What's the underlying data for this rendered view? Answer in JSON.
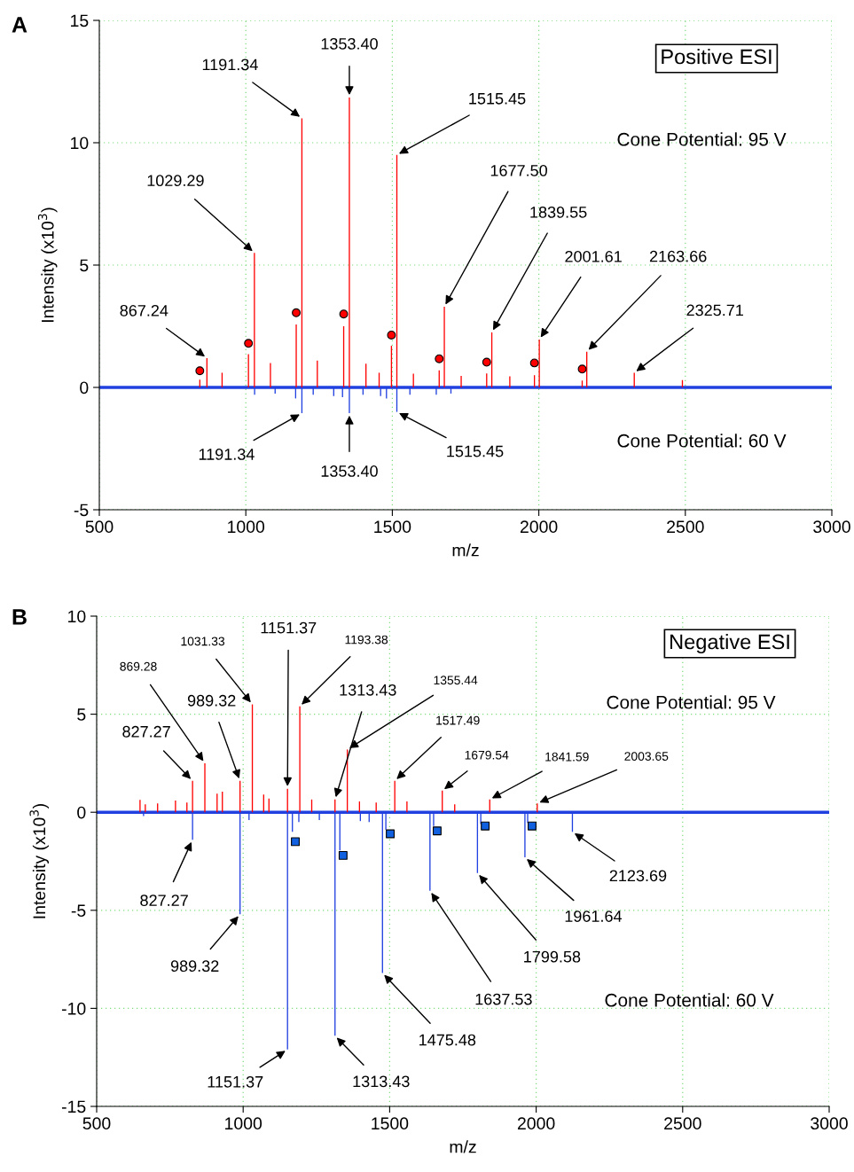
{
  "chart_data": [
    {
      "type": "bar",
      "xlabel": "m/z",
      "ylabel": "Intensity (x10$^{3}$)",
      "xlim": [
        500,
        3000
      ],
      "xticks": [
        500,
        1000,
        1500,
        2000,
        2500,
        3000
      ],
      "ylim": [
        -5,
        15
      ],
      "yticks": [
        -5,
        0,
        5,
        10,
        15
      ],
      "grid": true,
      "legend": false,
      "ref_lines": [
        {
          "axis": "y",
          "value": 0,
          "color": "#2040e0"
        }
      ],
      "series": [
        {
          "color": "#2040e0",
          "x": [
            1030,
            1100,
            1170,
            1191.34,
            1230,
            1300,
            1330,
            1353.4,
            1400,
            1460,
            1480,
            1515.45,
            1560,
            1650,
            1700
          ],
          "values": [
            -0.3,
            -0.25,
            -0.45,
            -1.05,
            -0.3,
            -0.35,
            -0.4,
            -1.05,
            -0.3,
            -0.35,
            -0.45,
            -1.0,
            -0.3,
            -0.3,
            -0.25
          ]
        },
        {
          "color": "#ff0000",
          "x": [
            843,
            867.24,
            919,
            1009,
            1029.29,
            1084,
            1172,
            1191.34,
            1244,
            1334,
            1353.4,
            1410,
            1455,
            1497,
            1515.45,
            1572,
            1660,
            1677.5,
            1735,
            1822,
            1839.55,
            1901,
            1985,
            2001.61,
            2148,
            2163.66,
            2325.71,
            2490
          ],
          "values": [
            0.32,
            1.2,
            0.6,
            1.36,
            5.5,
            1.0,
            2.57,
            11.0,
            1.1,
            2.5,
            11.85,
            0.97,
            0.6,
            1.7,
            9.5,
            0.56,
            0.7,
            3.3,
            0.47,
            0.57,
            2.25,
            0.45,
            0.5,
            1.96,
            0.28,
            1.46,
            0.6,
            0.3
          ]
        },
        {
          "type": "scatter",
          "marker": "circle",
          "color": "#ff0000",
          "x": [
            843,
            1009,
            1172,
            1334,
            1497,
            1660,
            1822,
            1985,
            2148
          ],
          "values": [
            0.68,
            1.8,
            3.05,
            3.0,
            2.14,
            1.17,
            1.03,
            1.0,
            0.75
          ]
        }
      ],
      "annotations": [
        "A",
        "Positive ESI",
        "Cone Potential: 95 V",
        "Cone Potential: 60 V",
        {
          "text": "867.24",
          "x": 867.24,
          "y": 1.2
        },
        {
          "text": "1029.29",
          "x": 1029.29,
          "y": 5.5
        },
        {
          "text": "1191.34",
          "x": 1191.34,
          "y": 11.0
        },
        {
          "text": "1353.40",
          "x": 1353.4,
          "y": 11.85
        },
        {
          "text": "1515.45",
          "x": 1515.45,
          "y": 9.5
        },
        {
          "text": "1677.50",
          "x": 1677.5,
          "y": 3.3
        },
        {
          "text": "1839.55",
          "x": 1839.55,
          "y": 2.25
        },
        {
          "text": "2001.61",
          "x": 2001.61,
          "y": 1.96
        },
        {
          "text": "2163.66",
          "x": 2163.66,
          "y": 1.46
        },
        {
          "text": "2325.71",
          "x": 2325.71,
          "y": 0.6
        },
        {
          "text": "1191.34",
          "x": 1191.34,
          "y": -1.05
        },
        {
          "text": "1353.40",
          "x": 1353.4,
          "y": -1.05
        },
        {
          "text": "1515.45",
          "x": 1515.45,
          "y": -1.0
        }
      ]
    },
    {
      "type": "bar",
      "xlabel": "m/z",
      "ylabel": "Intensity (x10$^{3}$)",
      "xlim": [
        500,
        3000
      ],
      "xticks": [
        500,
        1000,
        1500,
        2000,
        2500,
        3000
      ],
      "ylim": [
        -15,
        10
      ],
      "yticks": [
        -15,
        -10,
        -5,
        0,
        5,
        10
      ],
      "grid": true,
      "legend": false,
      "ref_lines": [
        {
          "axis": "y",
          "value": 0,
          "color": "#2040e0"
        }
      ],
      "series": [
        {
          "color": "#2040e0",
          "x": [
            660,
            827.27,
            989.32,
            1020,
            1151.37,
            1168,
            1190,
            1260,
            1313.43,
            1330,
            1400,
            1430,
            1475.48,
            1487,
            1637.53,
            1650,
            1799.58,
            1811,
            1961.64,
            1971,
            2123.69
          ],
          "values": [
            -0.2,
            -1.4,
            -5.2,
            -0.4,
            -12.1,
            -1.0,
            -0.5,
            -0.4,
            -11.4,
            -1.95,
            -0.45,
            -0.5,
            -8.2,
            -0.9,
            -4.0,
            -0.7,
            -3.1,
            -0.6,
            -2.3,
            -0.55,
            -1.0
          ]
        },
        {
          "color": "#ff0000",
          "x": [
            648,
            666,
            708,
            769,
            808,
            827.27,
            869.28,
            911,
            929,
            989.32,
            1031.33,
            1070,
            1088,
            1151.37,
            1193.38,
            1234,
            1313.43,
            1355.44,
            1397,
            1454,
            1517.49,
            1559,
            1679.54,
            1722,
            1841.59,
            2003.65
          ],
          "values": [
            0.63,
            0.4,
            0.45,
            0.6,
            0.5,
            1.6,
            2.5,
            0.95,
            1.05,
            1.6,
            5.5,
            0.9,
            0.7,
            1.2,
            5.4,
            0.65,
            0.65,
            3.2,
            0.55,
            0.5,
            1.6,
            0.55,
            1.1,
            0.4,
            0.65,
            0.45
          ]
        },
        {
          "type": "scatter",
          "marker": "square",
          "color": "#1060e0",
          "x": [
            1178,
            1341,
            1502,
            1662,
            1826,
            1986
          ],
          "values": [
            -1.5,
            -2.2,
            -1.1,
            -0.95,
            -0.7,
            -0.7
          ]
        }
      ],
      "annotations": [
        "B",
        "Negative ESI",
        "Cone Potential: 95 V",
        "Cone Potential: 60 V",
        {
          "text": "827.27",
          "x": 827.27,
          "y": 1.6
        },
        {
          "text": "869.28",
          "x": 869.28,
          "y": 2.5
        },
        {
          "text": "989.32",
          "x": 989.32,
          "y": 1.6
        },
        {
          "text": "1031.33",
          "x": 1031.33,
          "y": 5.5
        },
        {
          "text": "1151.37",
          "x": 1151.37,
          "y": 1.2
        },
        {
          "text": "1193.38",
          "x": 1193.38,
          "y": 5.4
        },
        {
          "text": "1313.43",
          "x": 1313.43,
          "y": 0.65
        },
        {
          "text": "1355.44",
          "x": 1355.44,
          "y": 3.2
        },
        {
          "text": "1517.49",
          "x": 1517.49,
          "y": 1.6
        },
        {
          "text": "1679.54",
          "x": 1679.54,
          "y": 1.1
        },
        {
          "text": "1841.59",
          "x": 1841.59,
          "y": 0.65
        },
        {
          "text": "2003.65",
          "x": 2003.65,
          "y": 0.45
        },
        {
          "text": "827.27",
          "x": 827.27,
          "y": -1.4
        },
        {
          "text": "989.32",
          "x": 989.32,
          "y": -5.2
        },
        {
          "text": "1151.37",
          "x": 1151.37,
          "y": -12.1
        },
        {
          "text": "1313.43",
          "x": 1313.43,
          "y": -11.4
        },
        {
          "text": "1475.48",
          "x": 1475.48,
          "y": -8.2
        },
        {
          "text": "1637.53",
          "x": 1637.53,
          "y": -4.0
        },
        {
          "text": "1799.58",
          "x": 1799.58,
          "y": -3.1
        },
        {
          "text": "1961.64",
          "x": 1961.64,
          "y": -2.3
        },
        {
          "text": "2123.69",
          "x": 2123.69,
          "y": -1.0
        }
      ]
    }
  ]
}
